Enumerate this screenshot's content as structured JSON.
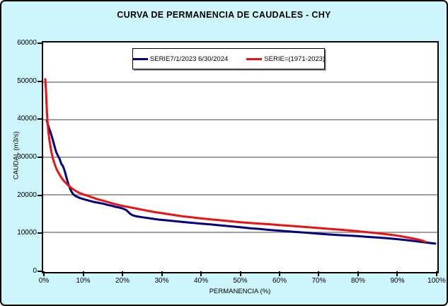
{
  "chart_data": {
    "type": "line",
    "title": "CURVA DE PERMANENCIA DE CAUDALES - CHY",
    "xlabel": "PERMANENCIA (%)",
    "ylabel": "CAUDAL (m3/s)",
    "xlim": [
      0,
      100
    ],
    "ylim": [
      0,
      60000
    ],
    "grid": "horizontal",
    "legend_position": "top-center",
    "colors": {
      "background": "#CDF5FC",
      "plot_background": "#FFFFFF",
      "grid": "#808080",
      "axis": "#000000"
    },
    "y_ticks": [
      {
        "value": 0,
        "label": "0"
      },
      {
        "value": 10000,
        "label": "10000"
      },
      {
        "value": 20000,
        "label": "20000"
      },
      {
        "value": 30000,
        "label": "30000"
      },
      {
        "value": 40000,
        "label": "40000"
      },
      {
        "value": 50000,
        "label": "50000"
      },
      {
        "value": 60000,
        "label": "60000"
      }
    ],
    "x_ticks": [
      {
        "value": 0,
        "label": "0%"
      },
      {
        "value": 10,
        "label": "10%"
      },
      {
        "value": 20,
        "label": "20%"
      },
      {
        "value": 30,
        "label": "30%"
      },
      {
        "value": 40,
        "label": "40%"
      },
      {
        "value": 50,
        "label": "50%"
      },
      {
        "value": 60,
        "label": "60%"
      },
      {
        "value": 70,
        "label": "70%"
      },
      {
        "value": 80,
        "label": "80%"
      },
      {
        "value": 90,
        "label": "90%"
      },
      {
        "value": 100,
        "label": "100%"
      }
    ],
    "series": [
      {
        "name": "SERIE7/1/2023 6/30/2024",
        "color": "#000080",
        "points": [
          [
            0.4,
            39800
          ],
          [
            0.6,
            39000
          ],
          [
            0.8,
            38300
          ],
          [
            1.0,
            37600
          ],
          [
            1.3,
            36800
          ],
          [
            1.6,
            35800
          ],
          [
            1.9,
            34700
          ],
          [
            2.2,
            33600
          ],
          [
            2.5,
            32400
          ],
          [
            2.8,
            31400
          ],
          [
            3.1,
            30700
          ],
          [
            3.4,
            30100
          ],
          [
            3.7,
            29500
          ],
          [
            3.9,
            28800
          ],
          [
            4.2,
            28100
          ],
          [
            4.5,
            27700
          ],
          [
            4.8,
            26900
          ],
          [
            5.1,
            25900
          ],
          [
            5.4,
            24700
          ],
          [
            5.7,
            23600
          ],
          [
            6.0,
            22600
          ],
          [
            6.4,
            21500
          ],
          [
            6.8,
            20700
          ],
          [
            7.2,
            20100
          ],
          [
            7.7,
            19700
          ],
          [
            8.3,
            19400
          ],
          [
            9.0,
            19100
          ],
          [
            10,
            18800
          ],
          [
            11,
            18500
          ],
          [
            12,
            18200
          ],
          [
            13,
            18000
          ],
          [
            14,
            17800
          ],
          [
            15,
            17600
          ],
          [
            16,
            17300
          ],
          [
            17,
            17100
          ],
          [
            18,
            16800
          ],
          [
            19,
            16600
          ],
          [
            20,
            16300
          ],
          [
            20.8,
            15900
          ],
          [
            21.3,
            15400
          ],
          [
            21.8,
            14900
          ],
          [
            22.5,
            14500
          ],
          [
            23.5,
            14250
          ],
          [
            25,
            14000
          ],
          [
            27,
            13700
          ],
          [
            29,
            13400
          ],
          [
            31,
            13200
          ],
          [
            33,
            13000
          ],
          [
            35,
            12800
          ],
          [
            37.5,
            12550
          ],
          [
            40,
            12300
          ],
          [
            42.5,
            12100
          ],
          [
            45,
            11850
          ],
          [
            47.5,
            11600
          ],
          [
            50,
            11350
          ],
          [
            52.5,
            11100
          ],
          [
            55,
            10900
          ],
          [
            57.5,
            10650
          ],
          [
            60,
            10450
          ],
          [
            62.5,
            10250
          ],
          [
            65,
            10050
          ],
          [
            67.5,
            9850
          ],
          [
            70,
            9650
          ],
          [
            72.5,
            9450
          ],
          [
            75,
            9300
          ],
          [
            77.5,
            9150
          ],
          [
            80,
            9000
          ],
          [
            82.5,
            8800
          ],
          [
            85,
            8650
          ],
          [
            87.5,
            8450
          ],
          [
            90,
            8200
          ],
          [
            92,
            8000
          ],
          [
            94,
            7750
          ],
          [
            96,
            7500
          ],
          [
            98,
            7250
          ],
          [
            100,
            7000
          ]
        ]
      },
      {
        "name": "SERIE=(1971-2023)",
        "color": "#EE1111",
        "points": [
          [
            0,
            50800
          ],
          [
            0.2,
            47500
          ],
          [
            0.3,
            44500
          ],
          [
            0.45,
            41500
          ],
          [
            0.6,
            39000
          ],
          [
            0.8,
            36800
          ],
          [
            1.0,
            35000
          ],
          [
            1.3,
            33000
          ],
          [
            1.6,
            31300
          ],
          [
            2.0,
            29500
          ],
          [
            2.4,
            28200
          ],
          [
            2.8,
            27100
          ],
          [
            3.2,
            26200
          ],
          [
            3.7,
            25300
          ],
          [
            4.2,
            24500
          ],
          [
            4.8,
            23700
          ],
          [
            5.4,
            23000
          ],
          [
            6.0,
            22400
          ],
          [
            6.7,
            21800
          ],
          [
            7.4,
            21300
          ],
          [
            8.2,
            20800
          ],
          [
            9.0,
            20400
          ],
          [
            10,
            20000
          ],
          [
            11,
            19700
          ],
          [
            12,
            19300
          ],
          [
            13.5,
            18800
          ],
          [
            15,
            18400
          ],
          [
            16.5,
            17900
          ],
          [
            18,
            17500
          ],
          [
            20,
            17000
          ],
          [
            22,
            16600
          ],
          [
            24,
            16200
          ],
          [
            26,
            15800
          ],
          [
            28,
            15400
          ],
          [
            30,
            15100
          ],
          [
            32.5,
            14700
          ],
          [
            35,
            14300
          ],
          [
            37.5,
            14000
          ],
          [
            40,
            13700
          ],
          [
            42.5,
            13450
          ],
          [
            45,
            13200
          ],
          [
            47.5,
            12950
          ],
          [
            50,
            12700
          ],
          [
            52.5,
            12500
          ],
          [
            55,
            12300
          ],
          [
            57.5,
            12150
          ],
          [
            60,
            11950
          ],
          [
            62.5,
            11750
          ],
          [
            65,
            11550
          ],
          [
            67.5,
            11350
          ],
          [
            70,
            11150
          ],
          [
            72.5,
            10950
          ],
          [
            75,
            10750
          ],
          [
            77.5,
            10550
          ],
          [
            80,
            10300
          ],
          [
            82.5,
            10050
          ],
          [
            85,
            9800
          ],
          [
            87,
            9550
          ],
          [
            89,
            9300
          ],
          [
            91,
            9000
          ],
          [
            93,
            8600
          ],
          [
            95,
            8200
          ],
          [
            96.5,
            7850
          ],
          [
            97.5,
            7500
          ]
        ]
      }
    ]
  }
}
